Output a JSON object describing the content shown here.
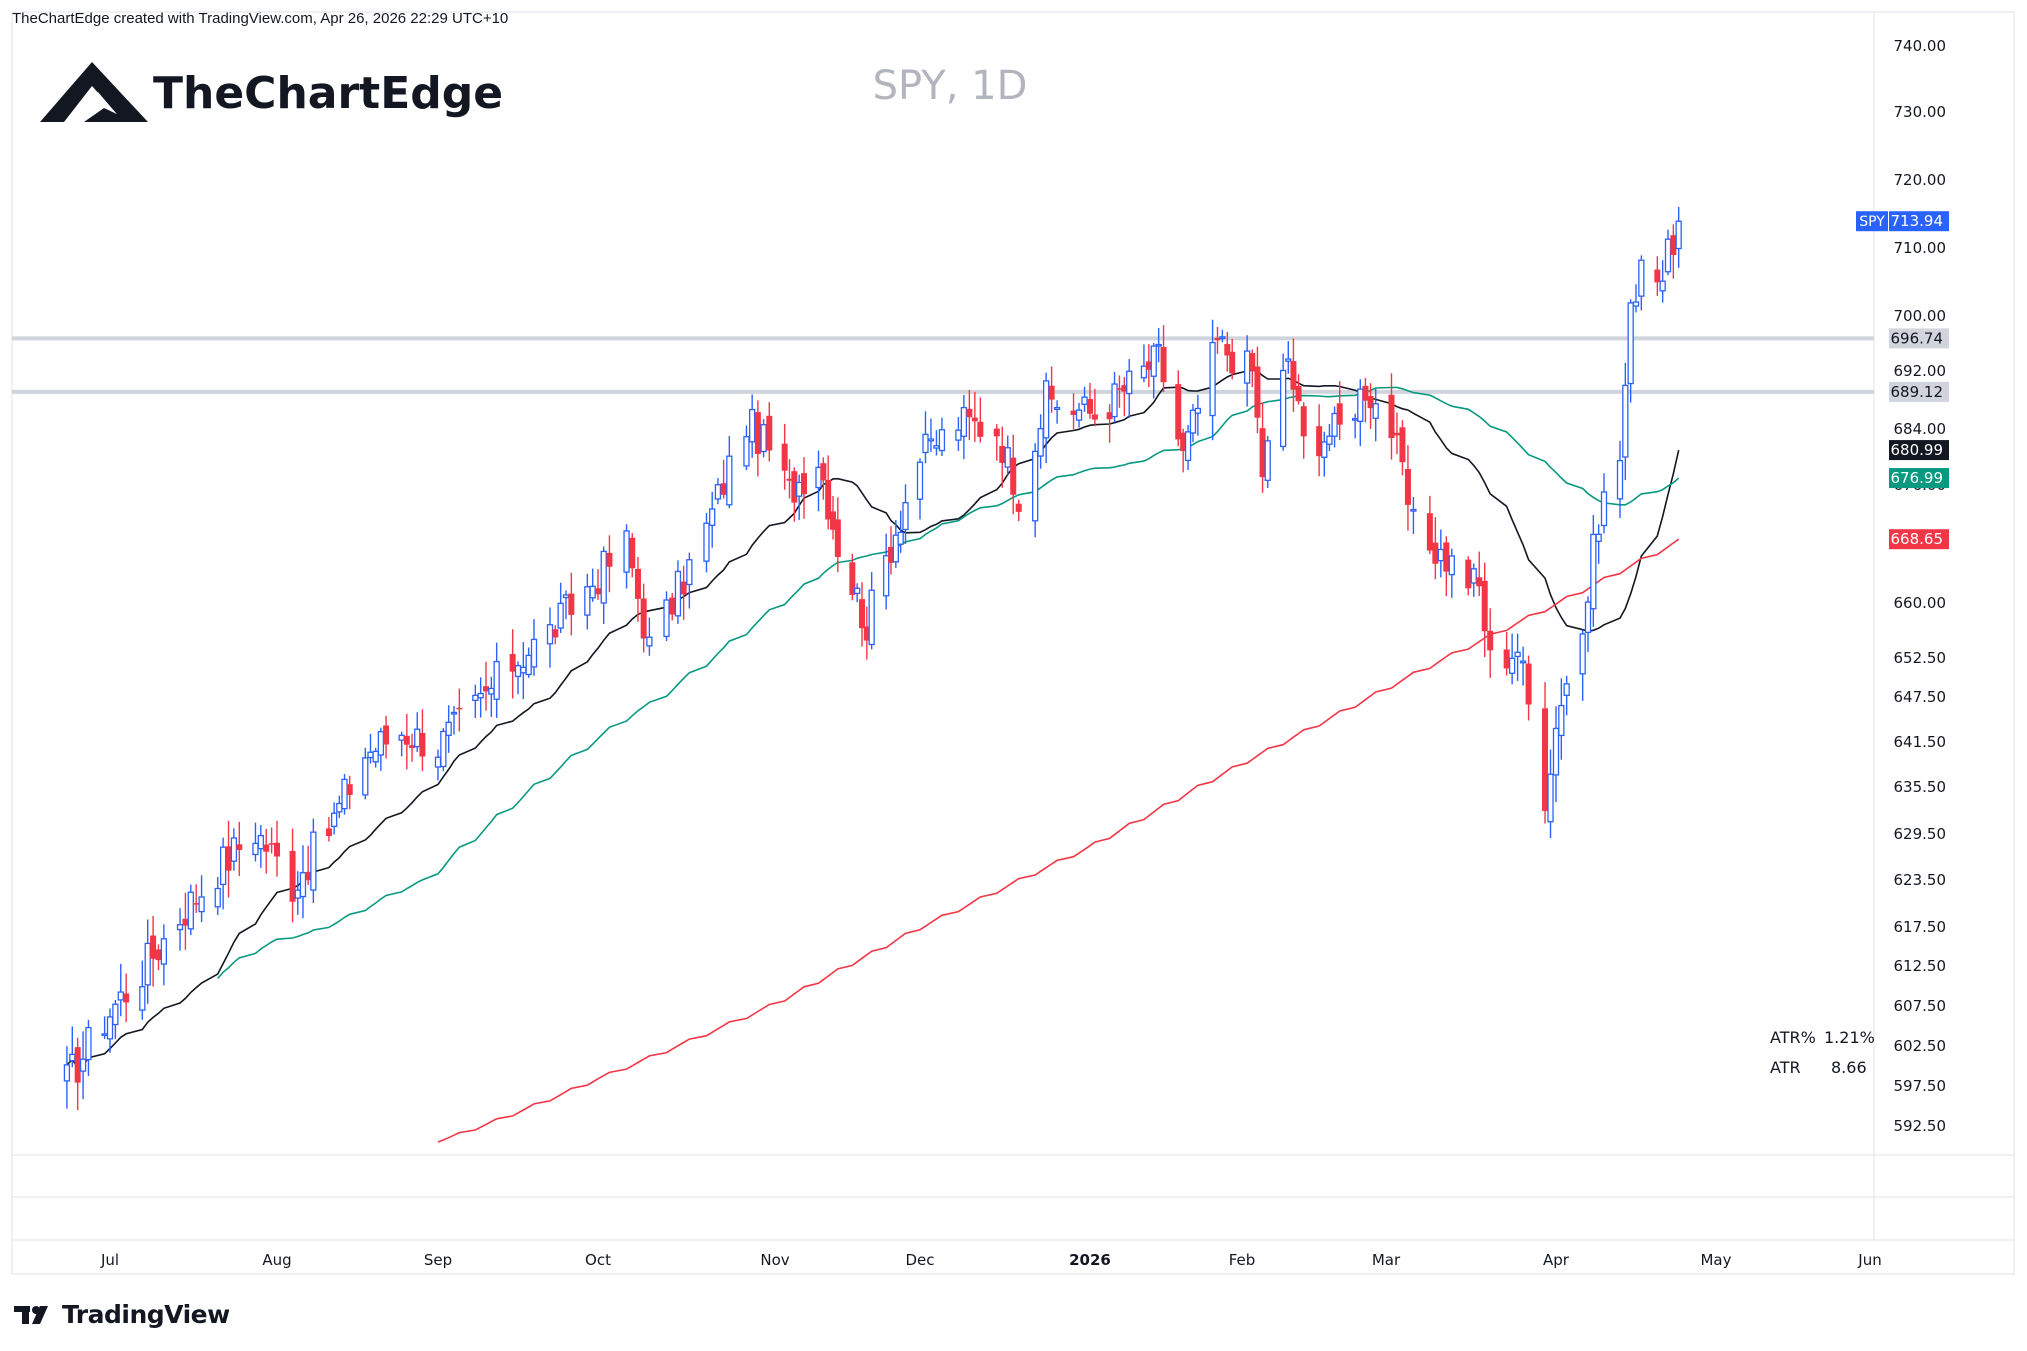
{
  "header": {
    "credit": "TheChartEdge created with TradingView.com, Apr 26, 2026 22:29 UTC+10"
  },
  "brand": {
    "name": "TheChartEdge",
    "footer_name": "TradingView"
  },
  "colors": {
    "up_candle": "#2962ff",
    "down_candle": "#f23645",
    "ma_short": "#131722",
    "ma_mid": "#089981",
    "ma_long": "#f23645",
    "level_line": "#d1d4dc"
  },
  "chart_data": {
    "type": "candlestick",
    "title": "SPY, 1D",
    "symbol": "SPY",
    "timeframe": "1D",
    "y_ticks": [
      740.0,
      730.0,
      720.0,
      710.0,
      700.0,
      692.0,
      684.0,
      676.0,
      660.0,
      652.5,
      647.5,
      641.5,
      635.5,
      629.5,
      623.5,
      617.5,
      612.5,
      607.5,
      602.5,
      597.5,
      592.5
    ],
    "ylim": [
      590,
      742
    ],
    "x_ticks": [
      "Jul",
      "Aug",
      "Sep",
      "Oct",
      "Nov",
      "Dec",
      "2026",
      "Feb",
      "Mar",
      "Apr",
      "May",
      "Jun"
    ],
    "price_labels": [
      {
        "text": "SPY",
        "value": "713.94",
        "color": "#2962ff"
      },
      {
        "text": "",
        "value": "696.74",
        "color": "#d1d4dc"
      },
      {
        "text": "",
        "value": "689.12",
        "color": "#d1d4dc"
      },
      {
        "text": "",
        "value": "680.99",
        "color": "#131722"
      },
      {
        "text": "",
        "value": "676.99",
        "color": "#089981"
      },
      {
        "text": "",
        "value": "668.65",
        "color": "#f23645"
      }
    ],
    "levels": [
      696.74,
      689.12
    ],
    "atr": {
      "atr_pct_label": "ATR%",
      "atr_pct": "1.21%",
      "atr_label": "ATR",
      "atr_value": "8.66"
    },
    "close_anchors": [
      [
        "2025-06-23",
        598
      ],
      [
        "2025-06-30",
        606
      ],
      [
        "2025-07-07",
        612
      ],
      [
        "2025-07-14",
        619
      ],
      [
        "2025-07-21",
        625
      ],
      [
        "2025-07-28",
        630
      ],
      [
        "2025-08-04",
        623
      ],
      [
        "2025-08-11",
        630
      ],
      [
        "2025-08-18",
        640
      ],
      [
        "2025-08-25",
        643
      ],
      [
        "2025-09-01",
        641
      ],
      [
        "2025-09-08",
        646
      ],
      [
        "2025-09-15",
        652
      ],
      [
        "2025-09-22",
        656
      ],
      [
        "2025-09-29",
        662
      ],
      [
        "2025-10-06",
        668
      ],
      [
        "2025-10-10",
        654
      ],
      [
        "2025-10-14",
        660
      ],
      [
        "2025-10-20",
        670
      ],
      [
        "2025-10-27",
        685
      ],
      [
        "2025-10-31",
        681
      ],
      [
        "2025-11-04",
        675
      ],
      [
        "2025-11-10",
        680
      ],
      [
        "2025-11-14",
        668
      ],
      [
        "2025-11-20",
        657
      ],
      [
        "2025-11-24",
        666
      ],
      [
        "2025-12-01",
        680
      ],
      [
        "2025-12-08",
        685
      ],
      [
        "2025-12-15",
        684
      ],
      [
        "2025-12-19",
        675
      ],
      [
        "2025-12-24",
        688
      ],
      [
        "2026-01-02",
        686
      ],
      [
        "2026-01-09",
        690
      ],
      [
        "2026-01-15",
        694
      ],
      [
        "2026-01-20",
        680
      ],
      [
        "2026-01-27",
        696
      ],
      [
        "2026-02-03",
        692
      ],
      [
        "2026-02-05",
        678
      ],
      [
        "2026-02-10",
        694
      ],
      [
        "2026-02-13",
        682
      ],
      [
        "2026-02-20",
        684
      ],
      [
        "2026-02-25",
        690
      ],
      [
        "2026-03-02",
        684
      ],
      [
        "2026-03-06",
        670
      ],
      [
        "2026-03-12",
        666
      ],
      [
        "2026-03-18",
        662
      ],
      [
        "2026-03-20",
        652
      ],
      [
        "2026-03-25",
        654
      ],
      [
        "2026-03-30",
        635
      ],
      [
        "2026-04-02",
        648
      ],
      [
        "2026-04-06",
        656
      ],
      [
        "2026-04-09",
        672
      ],
      [
        "2026-04-13",
        680
      ],
      [
        "2026-04-15",
        700
      ],
      [
        "2026-04-17",
        709
      ],
      [
        "2026-04-21",
        706
      ],
      [
        "2026-04-24",
        713.94
      ]
    ],
    "ma_last": {
      "ma_short": 680.99,
      "ma_mid": 676.99,
      "ma_long": 668.65
    }
  }
}
